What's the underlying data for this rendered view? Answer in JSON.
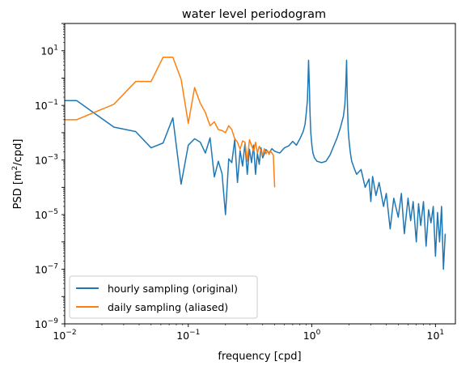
{
  "chart_data": {
    "type": "line",
    "title": "water level periodogram",
    "xlabel": "frequency [cpd]",
    "ylabel_main": "PSD [m",
    "ylabel_sup": "2",
    "ylabel_tail": "/cpd]",
    "xscale": "log",
    "yscale": "log",
    "xlim": [
      0.01,
      14.5
    ],
    "ylim": [
      1e-09,
      100
    ],
    "grid": false,
    "legend_position": "lower-left",
    "x_ticks": [
      {
        "value": 0.01,
        "base": "10",
        "exp": "−2"
      },
      {
        "value": 0.1,
        "base": "10",
        "exp": "−1"
      },
      {
        "value": 1,
        "base": "10",
        "exp": "0"
      },
      {
        "value": 10,
        "base": "10",
        "exp": "1"
      }
    ],
    "y_ticks": [
      {
        "value": 1e-09,
        "base": "10",
        "exp": "−9"
      },
      {
        "value": 1e-07,
        "base": "10",
        "exp": "−7"
      },
      {
        "value": 1e-05,
        "base": "10",
        "exp": "−5"
      },
      {
        "value": 0.001,
        "base": "10",
        "exp": "−3"
      },
      {
        "value": 0.1,
        "base": "10",
        "exp": "−1"
      },
      {
        "value": 10,
        "base": "10",
        "exp": "1"
      }
    ],
    "series": [
      {
        "name": "hourly sampling (original)",
        "color": "#1f77b4",
        "x": [
          0.01,
          0.0125,
          0.025,
          0.0375,
          0.05,
          0.0625,
          0.075,
          0.0875,
          0.1,
          0.1125,
          0.125,
          0.1375,
          0.15,
          0.1625,
          0.175,
          0.1875,
          0.2,
          0.2125,
          0.225,
          0.2375,
          0.25,
          0.2625,
          0.275,
          0.2875,
          0.3,
          0.3125,
          0.325,
          0.3375,
          0.35,
          0.3625,
          0.375,
          0.3875,
          0.4,
          0.425,
          0.45,
          0.475,
          0.5,
          0.55,
          0.6,
          0.65,
          0.7,
          0.75,
          0.8,
          0.85,
          0.88,
          0.9,
          0.92,
          0.93,
          0.94,
          0.955,
          0.965,
          0.98,
          1.0,
          1.02,
          1.05,
          1.1,
          1.2,
          1.3,
          1.4,
          1.5,
          1.6,
          1.7,
          1.8,
          1.85,
          1.88,
          1.91,
          1.93,
          1.95,
          1.97,
          2.0,
          2.05,
          2.1,
          2.2,
          2.3,
          2.5,
          2.7,
          2.9,
          3.0,
          3.1,
          3.3,
          3.5,
          3.8,
          4.0,
          4.3,
          4.6,
          5.0,
          5.3,
          5.6,
          6.0,
          6.3,
          6.6,
          7.0,
          7.3,
          7.6,
          8.0,
          8.4,
          8.8,
          9.2,
          9.6,
          10.0,
          10.4,
          10.8,
          11.2,
          11.6,
          12.0
        ],
        "y": [
          0.15,
          0.15,
          0.016,
          0.011,
          0.0028,
          0.0042,
          0.035,
          0.00013,
          0.0035,
          0.006,
          0.0045,
          0.0018,
          0.0065,
          0.00024,
          0.0009,
          0.00032,
          1e-05,
          0.0011,
          0.0008,
          0.0055,
          0.00015,
          0.0022,
          0.0006,
          0.004,
          0.0003,
          0.0025,
          0.0008,
          0.0035,
          0.0003,
          0.0018,
          0.0007,
          0.0028,
          0.0012,
          0.0024,
          0.0018,
          0.0026,
          0.0021,
          0.0018,
          0.0028,
          0.0033,
          0.0048,
          0.0035,
          0.006,
          0.011,
          0.02,
          0.05,
          0.15,
          0.7,
          4.5,
          0.5,
          0.06,
          0.01,
          0.0035,
          0.0018,
          0.0012,
          0.0009,
          0.0008,
          0.0009,
          0.0015,
          0.0032,
          0.0065,
          0.015,
          0.04,
          0.11,
          0.5,
          4.5,
          0.3,
          0.05,
          0.012,
          0.005,
          0.0018,
          0.0009,
          0.0005,
          0.0003,
          0.00045,
          0.0001,
          0.0002,
          3e-05,
          0.00025,
          5e-05,
          0.00015,
          2e-05,
          6e-05,
          3e-06,
          4e-05,
          8e-06,
          6e-05,
          2e-06,
          4e-05,
          6e-06,
          3e-05,
          1e-06,
          2.5e-05,
          4e-06,
          3e-05,
          7e-07,
          1.5e-05,
          5e-06,
          2e-05,
          3e-07,
          1.2e-05,
          1e-06,
          2e-05,
          1e-07,
          2e-06
        ]
      },
      {
        "name": "daily sampling (aliased)",
        "color": "#ff7f0e",
        "x": [
          0.01,
          0.0125,
          0.025,
          0.0375,
          0.05,
          0.0625,
          0.075,
          0.0875,
          0.1,
          0.1125,
          0.125,
          0.1375,
          0.15,
          0.1625,
          0.175,
          0.1875,
          0.2,
          0.2125,
          0.225,
          0.2375,
          0.25,
          0.2625,
          0.275,
          0.2875,
          0.3,
          0.3125,
          0.325,
          0.3375,
          0.35,
          0.3625,
          0.375,
          0.3875,
          0.4,
          0.4125,
          0.425,
          0.4375,
          0.45,
          0.4625,
          0.475,
          0.4875,
          0.5
        ],
        "y": [
          0.03,
          0.03,
          0.11,
          0.75,
          0.75,
          5.8,
          5.8,
          0.9,
          0.022,
          0.45,
          0.12,
          0.055,
          0.018,
          0.025,
          0.013,
          0.012,
          0.01,
          0.018,
          0.013,
          0.006,
          0.0045,
          0.0025,
          0.005,
          0.0045,
          0.0009,
          0.0055,
          0.0035,
          0.0021,
          0.0045,
          0.0018,
          0.0032,
          0.0022,
          0.0015,
          0.0026,
          0.0017,
          0.0022,
          0.0016,
          0.0021,
          0.0018,
          0.0015,
          0.0001
        ]
      }
    ]
  }
}
